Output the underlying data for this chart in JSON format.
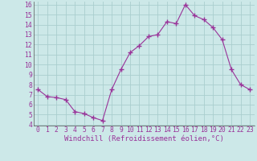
{
  "x": [
    0,
    1,
    2,
    3,
    4,
    5,
    6,
    7,
    8,
    9,
    10,
    11,
    12,
    13,
    14,
    15,
    16,
    17,
    18,
    19,
    20,
    21,
    22,
    23
  ],
  "y": [
    7.5,
    6.8,
    6.7,
    6.5,
    5.3,
    5.1,
    4.7,
    4.4,
    7.5,
    9.5,
    11.2,
    11.9,
    12.8,
    13.0,
    14.3,
    14.1,
    16.0,
    14.9,
    14.5,
    13.7,
    12.5,
    9.5,
    8.0,
    7.5
  ],
  "line_color": "#993399",
  "marker": "+",
  "marker_size": 4,
  "bg_color": "#cce8e8",
  "grid_color": "#aacece",
  "xlabel": "Windchill (Refroidissement éolien,°C)",
  "xlabel_fontsize": 6.5,
  "tick_color": "#993399",
  "tick_fontsize": 5.8,
  "ylim": [
    4,
    16
  ],
  "xlim": [
    -0.5,
    23.5
  ],
  "yticks": [
    4,
    5,
    6,
    7,
    8,
    9,
    10,
    11,
    12,
    13,
    14,
    15,
    16
  ],
  "xticks": [
    0,
    1,
    2,
    3,
    4,
    5,
    6,
    7,
    8,
    9,
    10,
    11,
    12,
    13,
    14,
    15,
    16,
    17,
    18,
    19,
    20,
    21,
    22,
    23
  ]
}
